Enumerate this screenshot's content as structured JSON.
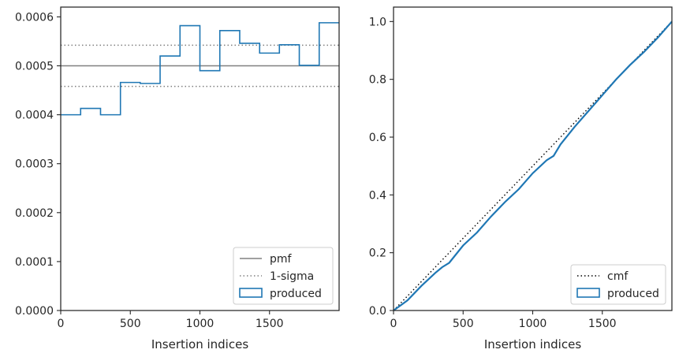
{
  "chart_data": [
    {
      "type": "histogram",
      "xlabel": "Insertion indices",
      "ylabel": "",
      "xlim": [
        0,
        2000
      ],
      "ylim": [
        0,
        0.00062
      ],
      "xticks": [
        0,
        500,
        1000,
        1500
      ],
      "xtick_labels": [
        "0",
        "500",
        "1000",
        "1500"
      ],
      "yticks": [
        0,
        0.0001,
        0.0002,
        0.0003,
        0.0004,
        0.0005,
        0.0006
      ],
      "ytick_labels": [
        "0.0000",
        "0.0001",
        "0.0002",
        "0.0003",
        "0.0004",
        "0.0005",
        "0.0006"
      ],
      "bin_edges": [
        0,
        143,
        286,
        429,
        571,
        714,
        857,
        1000,
        1143,
        1286,
        1429,
        1571,
        1714,
        1857,
        2000
      ],
      "series": [
        {
          "name": "produced",
          "style": "step",
          "color": "#1f77b4",
          "values": [
            0.0004,
            0.000413,
            0.0004,
            0.000466,
            0.000464,
            0.00052,
            0.000582,
            0.00049,
            0.000572,
            0.000546,
            0.000526,
            0.000543,
            0.000501,
            0.000588
          ]
        }
      ],
      "reference_lines": [
        {
          "name": "pmf",
          "y": 0.0005,
          "style": "solid",
          "color": "#808080"
        },
        {
          "name": "1-sigma",
          "y": [
            0.000458,
            0.000542
          ],
          "style": "dotted",
          "color": "#808080"
        }
      ],
      "legend": {
        "placement": "lower-right",
        "entries": [
          {
            "label": "pmf",
            "kind": "solid-line",
            "color": "#808080"
          },
          {
            "label": "1-sigma",
            "kind": "dotted-line",
            "color": "#808080"
          },
          {
            "label": "produced",
            "kind": "box",
            "color": "#1f77b4"
          }
        ]
      }
    },
    {
      "type": "line",
      "xlabel": "Insertion indices",
      "ylabel": "",
      "xlim": [
        0,
        2000
      ],
      "ylim": [
        0,
        1.05
      ],
      "xticks": [
        0,
        500,
        1000,
        1500
      ],
      "xtick_labels": [
        "0",
        "500",
        "1000",
        "1500"
      ],
      "yticks": [
        0,
        0.2,
        0.4,
        0.6,
        0.8,
        1.0
      ],
      "ytick_labels": [
        "0.0",
        "0.2",
        "0.4",
        "0.6",
        "0.8",
        "1.0"
      ],
      "series": [
        {
          "name": "cmf",
          "style": "dotted",
          "color": "#000000",
          "x": [
            0,
            2000
          ],
          "y": [
            0,
            1.0
          ]
        },
        {
          "name": "produced",
          "style": "solid",
          "color": "#1f77b4",
          "x": [
            0,
            100,
            200,
            300,
            350,
            400,
            500,
            600,
            700,
            800,
            900,
            1000,
            1100,
            1150,
            1200,
            1300,
            1400,
            1500,
            1600,
            1700,
            1800,
            1900,
            2000
          ],
          "y": [
            0,
            0.035,
            0.085,
            0.13,
            0.15,
            0.165,
            0.225,
            0.27,
            0.325,
            0.375,
            0.42,
            0.475,
            0.52,
            0.535,
            0.575,
            0.635,
            0.69,
            0.745,
            0.8,
            0.85,
            0.895,
            0.945,
            1.0
          ]
        }
      ],
      "legend": {
        "placement": "lower-right",
        "entries": [
          {
            "label": "cmf",
            "kind": "dotted-line",
            "color": "#000000"
          },
          {
            "label": "produced",
            "kind": "box",
            "color": "#1f77b4"
          }
        ]
      }
    }
  ]
}
